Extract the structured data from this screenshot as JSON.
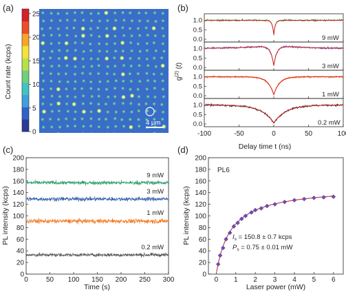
{
  "panel_labels": {
    "a": "(a)",
    "b": "(b)",
    "c": "(c)",
    "d": "(d)"
  },
  "colors": {
    "map_background": "#3a6cc8",
    "trace_9mw_b": "#3c8a3c",
    "trace_3mw_b": "#5d4fb0",
    "trace_1mw_b": "#f07a20",
    "trace_02mw_b": "#222222",
    "fit_b": "#d62020",
    "trace_9mw_c": "#2e9e6e",
    "trace_3mw_c": "#2f5fa8",
    "trace_1mw_c": "#f07a20",
    "trace_02mw_c": "#555555",
    "fit_d": "#c93a5c",
    "points_d": "#6a4fb0"
  },
  "chart_data": [
    {
      "panel": "a",
      "type": "heatmap",
      "ylabel": "Count rate (kcps)",
      "colorbar_ticks": [
        0,
        5,
        10,
        15,
        20,
        25
      ],
      "colorbar_range": [
        0,
        26
      ],
      "scale_bar": "4 μm"
    },
    {
      "panel": "b",
      "type": "line",
      "xlabel": "Delay time t (ns)",
      "ylabel": "g(2) (t)",
      "x_ticks": [
        -100,
        -50,
        0,
        50,
        100
      ],
      "xlim": [
        -100,
        100
      ],
      "y_ticks": [
        0.0,
        0.5,
        1.0
      ],
      "series": [
        {
          "name": "9 mW",
          "dip_min": 0.25,
          "width_ns": 2.2
        },
        {
          "name": "3 mW",
          "dip_min": 0.1,
          "width_ns": 4.5,
          "bunching": 0.18
        },
        {
          "name": "1 mW",
          "dip_min": 0.05,
          "width_ns": 8.0
        },
        {
          "name": "0.2 mW",
          "dip_min": 0.05,
          "width_ns": 17.0
        }
      ]
    },
    {
      "panel": "c",
      "type": "line",
      "xlabel": "Time (s)",
      "ylabel": "PL intensity (kcps)",
      "x_ticks": [
        0,
        50,
        100,
        150,
        200,
        250,
        300
      ],
      "xlim": [
        0,
        300
      ],
      "y_ticks": [
        0,
        20,
        40,
        60,
        80,
        100,
        120,
        140,
        160,
        180,
        200
      ],
      "ylim": [
        0,
        200
      ],
      "series": [
        {
          "name": "9 mW",
          "mean": 157,
          "noise": 2.5
        },
        {
          "name": "3 mW",
          "mean": 129,
          "noise": 2.5
        },
        {
          "name": "1 mW",
          "mean": 91,
          "noise": 2.8
        },
        {
          "name": "0.2 mW",
          "mean": 33,
          "noise": 2.2
        }
      ]
    },
    {
      "panel": "d",
      "type": "scatter",
      "label": "PL6",
      "xlabel": "Laser power (mW)",
      "ylabel": "PL intensity (kcps)",
      "x_ticks": [
        0,
        1,
        2,
        3,
        4,
        5,
        6
      ],
      "xlim": [
        -0.4,
        6.5
      ],
      "y_ticks": [
        0,
        20,
        40,
        60,
        80,
        100,
        120,
        140,
        160,
        180,
        200
      ],
      "ylim": [
        0,
        200
      ],
      "annotation_is": "I",
      "annotation_is_sub": "s",
      "annotation_is_value": " = 150.8 ± 0.7 kcps",
      "annotation_ps": "P",
      "annotation_ps_sub": "s",
      "annotation_ps_value": " = 0.75 ± 0.01 mW",
      "fit": {
        "Is": 150.8,
        "Ps": 0.75
      },
      "x": [
        0.1,
        0.2,
        0.35,
        0.5,
        0.7,
        0.9,
        1.1,
        1.3,
        1.5,
        1.8,
        2.0,
        2.3,
        2.6,
        3.0,
        3.5,
        4.0,
        4.5,
        5.0,
        5.5,
        6.0
      ],
      "y": [
        17,
        32,
        45,
        60,
        71,
        82,
        88,
        95,
        100,
        106,
        110,
        113,
        117,
        120,
        124,
        127,
        129,
        131,
        132,
        133
      ]
    }
  ]
}
